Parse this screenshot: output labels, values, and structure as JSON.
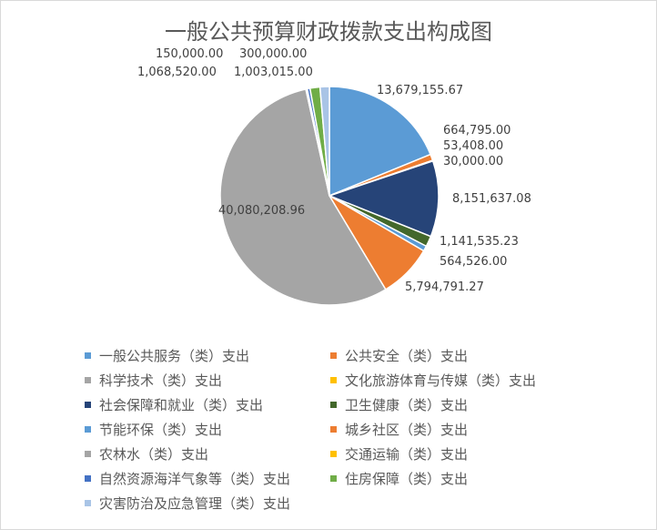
{
  "chart_data": {
    "type": "pie",
    "title": "一般公共预算财政拨款支出构成图",
    "legend_position": "bottom",
    "categories": [
      "一般公共服务（类）支出",
      "公共安全（类）支出",
      "科学技术（类）支出",
      "文化旅游体育与传媒（类）支出",
      "社会保障和就业（类）支出",
      "卫生健康（类）支出",
      "节能环保（类）支出",
      "城乡社区（类）支出",
      "农林水（类）支出",
      "交通运输（类）支出",
      "自然资源海洋气象等（类）支出",
      "住房保障（类）支出",
      "灾害防治及应急管理（类）支出"
    ],
    "values": [
      13679155.67,
      664795.0,
      53408.0,
      30000.0,
      8151637.08,
      1141535.23,
      564526.0,
      5794791.27,
      40080208.96,
      150000.0,
      300000.0,
      1068520.0,
      1003015.0
    ],
    "labels": [
      "13,679,155.67",
      "664,795.00",
      "53,408.00",
      "30,000.00",
      "8,151,637.08",
      "1,141,535.23",
      "564,526.00",
      "5,794,791.27",
      "40,080,208.96",
      "150,000.00",
      "300,000.00",
      "1,068,520.00",
      "1,003,015.00"
    ],
    "colors": [
      "#5b9bd5",
      "#ed7d31",
      "#a5a5a5",
      "#ffc000",
      "#264478",
      "#43682b",
      "#5b9bd5",
      "#ed7d31",
      "#a5a5a5",
      "#ffc000",
      "#4472c4",
      "#70ad47",
      "#a9c4e6"
    ]
  }
}
